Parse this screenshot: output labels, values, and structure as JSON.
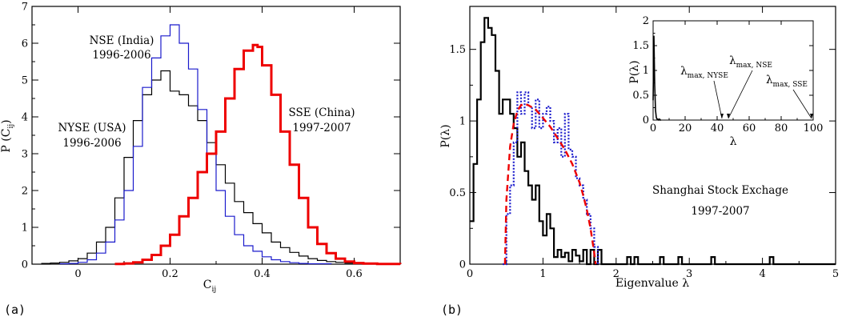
{
  "chart_data": [
    {
      "panel_label": "(a)",
      "type": "line",
      "xlabel": "C",
      "xlabel_sub": "ij",
      "ylabel": "P (C",
      "ylabel_sub": "ij",
      "ylabel_close": ")",
      "xlim": [
        -0.1,
        0.7
      ],
      "ylim": [
        0,
        7
      ],
      "xticks": [
        0,
        0.2,
        0.4,
        0.6
      ],
      "xtick_labels": [
        "0",
        "0.2",
        "0.4",
        "0.6"
      ],
      "yticks": [
        0,
        1,
        2,
        3,
        4,
        5,
        6,
        7
      ],
      "ytick_labels": [
        "0",
        "1",
        "2",
        "3",
        "4",
        "5",
        "6",
        "7"
      ],
      "annotations": [
        {
          "line1": "NSE (India)",
          "line2": "1996-2006"
        },
        {
          "line1": "NYSE (USA)",
          "line2": "1996-2006"
        },
        {
          "line1": "SSE (China)",
          "line2": "1997-2007"
        }
      ],
      "series": [
        {
          "color": "#000000",
          "step": true,
          "x": [
            -0.08,
            -0.06,
            -0.04,
            -0.02,
            0,
            0.02,
            0.04,
            0.06,
            0.08,
            0.1,
            0.12,
            0.14,
            0.16,
            0.18,
            0.2,
            0.22,
            0.24,
            0.26,
            0.28,
            0.3,
            0.32,
            0.34,
            0.36,
            0.38,
            0.4,
            0.42,
            0.44,
            0.46,
            0.48,
            0.5,
            0.52,
            0.54,
            0.56,
            0.58,
            0.6,
            0.62,
            0.65
          ],
          "y": [
            0.02,
            0.03,
            0.05,
            0.09,
            0.15,
            0.3,
            0.6,
            1.0,
            1.8,
            2.9,
            3.9,
            4.6,
            5.0,
            5.25,
            4.7,
            4.6,
            4.3,
            3.9,
            3.3,
            2.7,
            2.2,
            1.7,
            1.4,
            1.1,
            0.85,
            0.6,
            0.45,
            0.32,
            0.22,
            0.15,
            0.1,
            0.07,
            0.05,
            0.03,
            0.02,
            0.01,
            0.01
          ]
        },
        {
          "color": "#1a1acc",
          "step": true,
          "x": [
            -0.04,
            -0.02,
            0,
            0.02,
            0.04,
            0.06,
            0.08,
            0.1,
            0.12,
            0.14,
            0.16,
            0.18,
            0.2,
            0.22,
            0.24,
            0.26,
            0.28,
            0.3,
            0.32,
            0.34,
            0.36,
            0.38,
            0.4,
            0.42,
            0.44,
            0.46,
            0.48,
            0.5,
            0.52,
            0.55
          ],
          "y": [
            0.01,
            0.02,
            0.05,
            0.12,
            0.3,
            0.6,
            1.2,
            2.0,
            3.2,
            4.8,
            5.6,
            6.2,
            6.5,
            6.0,
            5.3,
            4.2,
            3.0,
            2.0,
            1.3,
            0.8,
            0.5,
            0.35,
            0.2,
            0.12,
            0.07,
            0.04,
            0.02,
            0.01,
            0.01,
            0.005
          ]
        },
        {
          "color": "#ee0000",
          "step": true,
          "x": [
            0.08,
            0.1,
            0.12,
            0.14,
            0.16,
            0.18,
            0.2,
            0.22,
            0.24,
            0.26,
            0.28,
            0.3,
            0.32,
            0.34,
            0.36,
            0.38,
            0.39,
            0.4,
            0.42,
            0.44,
            0.46,
            0.48,
            0.5,
            0.52,
            0.54,
            0.56,
            0.58,
            0.6,
            0.62,
            0.65,
            0.7
          ],
          "y": [
            0.005,
            0.02,
            0.05,
            0.12,
            0.25,
            0.5,
            0.8,
            1.3,
            1.8,
            2.5,
            3.0,
            3.6,
            4.5,
            5.3,
            5.8,
            5.95,
            5.9,
            5.4,
            4.6,
            3.6,
            2.7,
            1.8,
            1.0,
            0.55,
            0.3,
            0.15,
            0.07,
            0.03,
            0.015,
            0.005,
            0.0
          ]
        }
      ]
    },
    {
      "panel_label": "(b)",
      "type": "line",
      "xlabel": "Eigenvalue λ",
      "ylabel": "P(λ)",
      "xlim": [
        0,
        5
      ],
      "ylim": [
        0,
        1.8
      ],
      "xticks": [
        0,
        1,
        2,
        3,
        4,
        5
      ],
      "xtick_labels": [
        "0",
        "1",
        "2",
        "3",
        "4",
        "5"
      ],
      "yticks": [
        0,
        0.5,
        1,
        1.5
      ],
      "ytick_labels": [
        "0",
        "0.5",
        "1",
        "1.5"
      ],
      "annotation": {
        "line1": "Shanghai Stock Exchage",
        "line2": "1997-2007"
      },
      "series": [
        {
          "color": "#000000",
          "step": true,
          "style": "solid",
          "x": [
            0,
            0.05,
            0.1,
            0.15,
            0.2,
            0.25,
            0.3,
            0.35,
            0.4,
            0.45,
            0.5,
            0.55,
            0.6,
            0.65,
            0.7,
            0.75,
            0.8,
            0.85,
            0.9,
            0.95,
            1.0,
            1.05,
            1.1,
            1.15,
            1.2,
            1.25,
            1.3,
            1.35,
            1.4,
            1.45,
            1.5,
            1.55,
            1.6,
            1.65,
            1.7,
            1.75,
            1.8,
            2.15,
            2.2,
            2.25,
            2.3,
            2.6,
            2.65,
            2.85,
            2.9,
            3.3,
            3.35,
            4.1,
            4.15,
            5.0
          ],
          "y": [
            0.3,
            0.7,
            1.15,
            1.55,
            1.72,
            1.65,
            1.6,
            1.35,
            1.05,
            1.15,
            1.15,
            1.05,
            0.95,
            0.75,
            0.85,
            0.65,
            0.55,
            0.45,
            0.55,
            0.3,
            0.2,
            0.35,
            0.25,
            0.05,
            0.1,
            0.05,
            0.08,
            0.02,
            0.1,
            0.06,
            0.02,
            0.1,
            0.0,
            0.1,
            0.0,
            0.1,
            0.0,
            0.05,
            0.0,
            0.05,
            0.0,
            0.05,
            0.0,
            0.05,
            0.0,
            0.05,
            0.0,
            0.05,
            0.0,
            0.0
          ]
        },
        {
          "color": "#1a1acc",
          "step": true,
          "style": "dotted",
          "x": [
            0.45,
            0.5,
            0.55,
            0.6,
            0.65,
            0.7,
            0.75,
            0.8,
            0.85,
            0.9,
            0.95,
            1.0,
            1.05,
            1.1,
            1.15,
            1.2,
            1.25,
            1.3,
            1.35,
            1.4,
            1.45,
            1.5,
            1.55,
            1.6,
            1.65,
            1.7,
            1.75
          ],
          "y": [
            0.0,
            0.35,
            0.55,
            0.85,
            1.2,
            1.05,
            1.2,
            1.1,
            0.95,
            1.15,
            0.95,
            1.05,
            1.1,
            1.0,
            0.85,
            0.95,
            0.75,
            1.05,
            0.8,
            0.75,
            0.6,
            0.55,
            0.45,
            0.35,
            0.25,
            0.12,
            0.0
          ]
        },
        {
          "color": "#ee0000",
          "step": false,
          "style": "dashed",
          "x": [
            0.48,
            0.5,
            0.55,
            0.6,
            0.65,
            0.7,
            0.75,
            0.8,
            0.9,
            1.0,
            1.1,
            1.2,
            1.3,
            1.4,
            1.5,
            1.55,
            1.6,
            1.65,
            1.7,
            1.72
          ],
          "y": [
            0.0,
            0.45,
            0.82,
            0.98,
            1.07,
            1.11,
            1.12,
            1.11,
            1.08,
            1.02,
            0.96,
            0.88,
            0.8,
            0.7,
            0.57,
            0.48,
            0.38,
            0.25,
            0.08,
            0.0
          ]
        }
      ],
      "inset": {
        "xlabel": "λ",
        "ylabel": "P(λ)",
        "xlim": [
          0,
          100
        ],
        "ylim": [
          0,
          2
        ],
        "xticks": [
          0,
          20,
          40,
          60,
          80,
          100
        ],
        "xtick_labels": [
          "0",
          "20",
          "40",
          "60",
          "80",
          "100"
        ],
        "yticks": [
          0,
          0.5,
          1,
          1.5,
          2
        ],
        "ytick_labels": [
          "0",
          "0.5",
          "1",
          "1.5",
          "2"
        ],
        "labels": [
          {
            "main": "λ",
            "sub": "max, NYSE",
            "x": 43
          },
          {
            "main": "λ",
            "sub": "max, NSE",
            "x": 47
          },
          {
            "main": "λ",
            "sub": "max, SSE",
            "x": 99
          }
        ],
        "series": [
          {
            "color": "#000000",
            "x": [
              0,
              0.5,
              1,
              1.5,
              2,
              2.5,
              3,
              3.5,
              4,
              4.5,
              5
            ],
            "y": [
              0.4,
              1.7,
              0.7,
              0.2,
              0.05,
              0.02,
              0.02,
              0.0,
              0.02,
              0.0,
              0.0
            ]
          }
        ]
      }
    }
  ]
}
